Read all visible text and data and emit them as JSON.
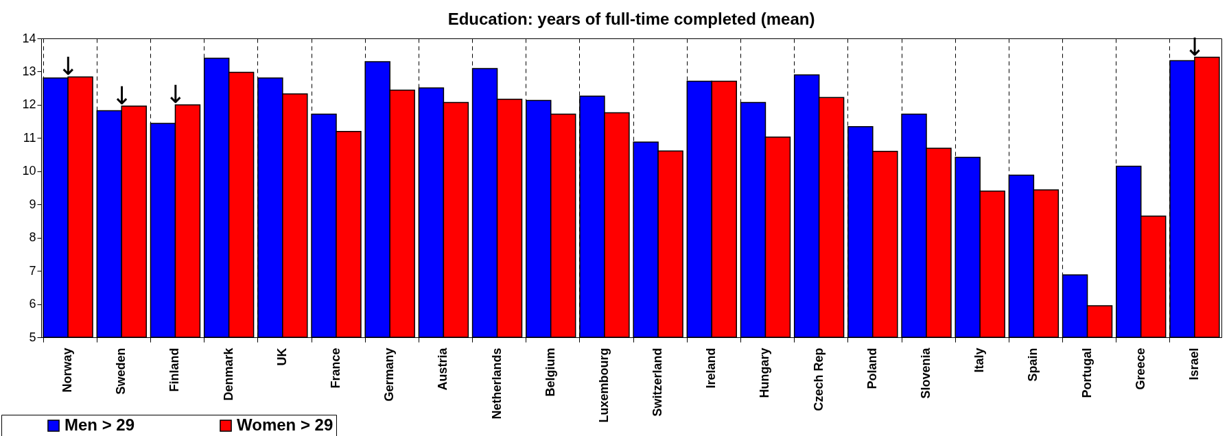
{
  "chart_data": {
    "type": "bar",
    "title": "Education: years of full-time completed (mean)",
    "categories": [
      "Norway",
      "Sweden",
      "Finland",
      "Denmark",
      "UK",
      "France",
      "Germany",
      "Austria",
      "Netherlands",
      "Belgium",
      "Luxembourg",
      "Switzerland",
      "Ireland",
      "Hungary",
      "Czech Rep",
      "Poland",
      "Slovenia",
      "Italy",
      "Spain",
      "Portugal",
      "Greece",
      "Israel"
    ],
    "series": [
      {
        "name": "Men > 29",
        "color": "#0000ff",
        "values": [
          12.81,
          11.82,
          11.44,
          13.4,
          12.81,
          11.72,
          13.3,
          12.51,
          13.09,
          12.13,
          12.26,
          10.88,
          12.71,
          12.07,
          12.9,
          11.34,
          11.72,
          10.42,
          9.88,
          6.88,
          10.15,
          13.33
        ]
      },
      {
        "name": "Women > 29",
        "color": "#ff0000",
        "values": [
          12.84,
          11.96,
          12.0,
          12.98,
          12.33,
          11.2,
          12.44,
          12.07,
          12.17,
          11.72,
          11.76,
          10.61,
          12.71,
          11.03,
          12.22,
          10.6,
          10.69,
          9.4,
          9.44,
          5.95,
          8.65,
          13.43
        ]
      }
    ],
    "ylim": [
      5,
      14
    ],
    "yticks": [
      5,
      6,
      7,
      8,
      9,
      10,
      11,
      12,
      13,
      14
    ],
    "grid": "x",
    "legend": "bottom left",
    "annotations": [
      {
        "text": "↓",
        "x": "Norway",
        "y": 12.84
      },
      {
        "text": "↓",
        "x": "Sweden",
        "y": 11.96
      },
      {
        "text": "↓",
        "x": "Finland",
        "y": 12.0
      },
      {
        "text": "↓",
        "x": "Israel",
        "y": 13.43
      }
    ]
  }
}
